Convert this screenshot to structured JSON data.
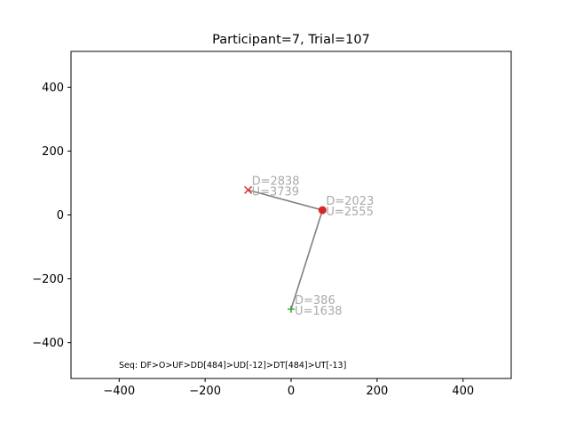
{
  "chart_data": {
    "type": "scatter",
    "title": "Participant=7, Trial=107",
    "xlabel": "",
    "ylabel": "",
    "xlim": [
      -512,
      512
    ],
    "ylim": [
      -512,
      512
    ],
    "xticks": [
      -400,
      -200,
      0,
      200,
      400
    ],
    "yticks": [
      -400,
      -200,
      0,
      200,
      400
    ],
    "xtick_labels": [
      "−400",
      "−200",
      "0",
      "200",
      "400"
    ],
    "ytick_labels": [
      "−400",
      "−200",
      "0",
      "200",
      "400"
    ],
    "grid": false,
    "path": [
      {
        "x": 0,
        "y": -295
      },
      {
        "x": 73,
        "y": 15
      },
      {
        "x": -100,
        "y": 78
      }
    ],
    "points": [
      {
        "role": "start",
        "marker": "plus",
        "color": "#2ca02c",
        "x": 0,
        "y": -295,
        "labels": [
          "D=386",
          "U=1638"
        ]
      },
      {
        "role": "middle",
        "marker": "circle",
        "color": "#d62728",
        "x": 73,
        "y": 15,
        "labels": [
          "D=2023",
          "U=2555"
        ]
      },
      {
        "role": "end",
        "marker": "cross",
        "color": "#d62728",
        "x": -100,
        "y": 78,
        "labels": [
          "D=2838",
          "U=3739"
        ]
      }
    ],
    "line_color": "#808080",
    "label_color": "#aaaaaa",
    "annotation": "Seq: DF>O>UF>DD[484]>UD[-12]>DT[484]>UT[-13]"
  }
}
